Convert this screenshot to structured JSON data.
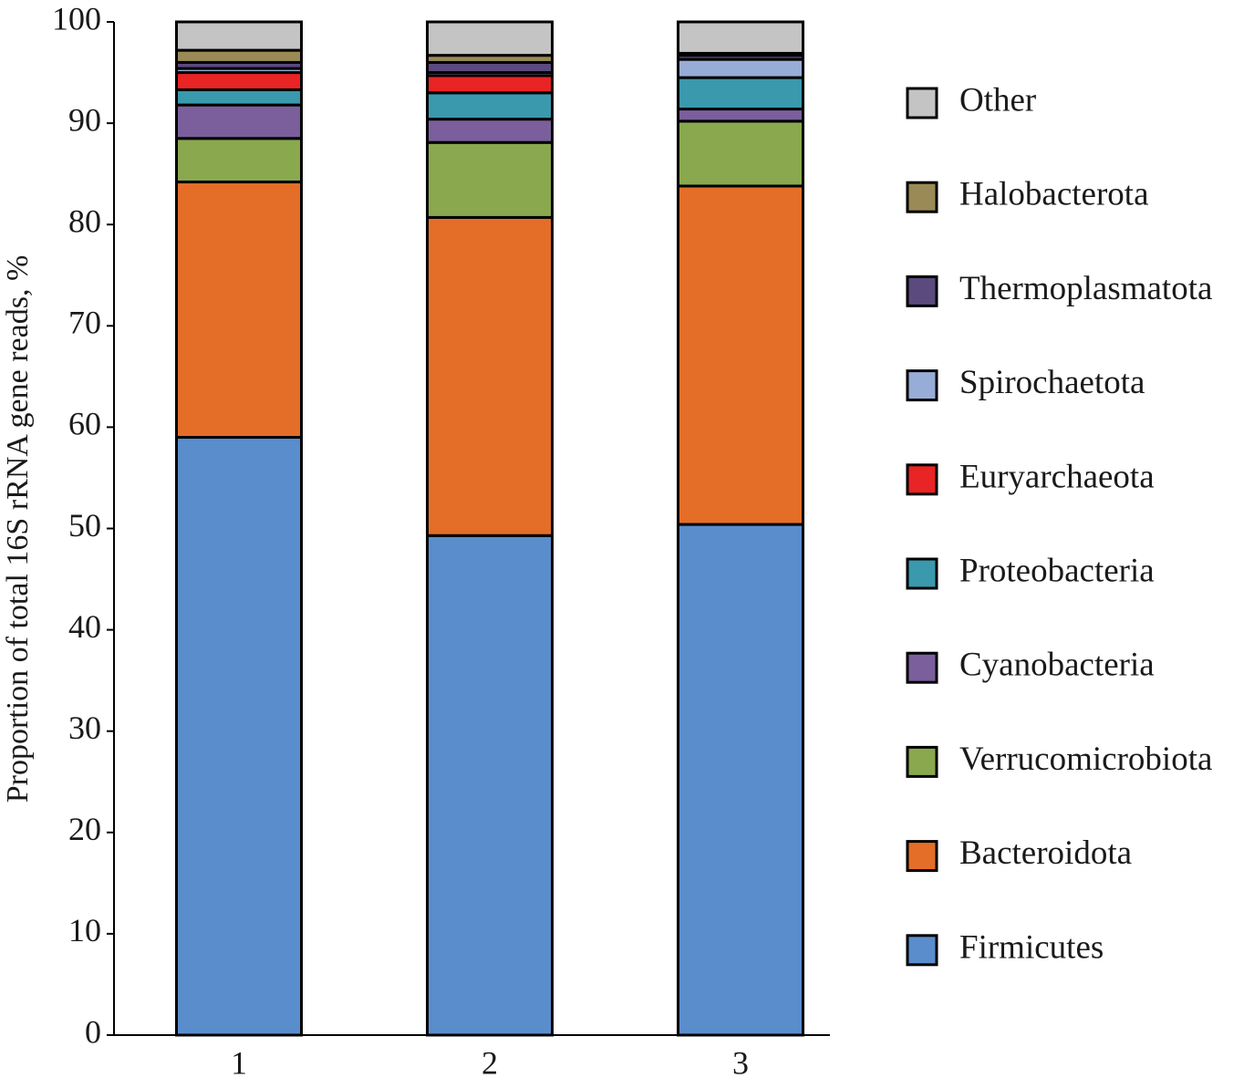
{
  "chart_data": {
    "type": "stacked-bar",
    "ylabel": "Proportion of total 16S rRNA gene reads, %",
    "categories": [
      "1",
      "2",
      "3"
    ],
    "ylim": [
      0,
      100
    ],
    "yticks": [
      0,
      10,
      20,
      30,
      40,
      50,
      60,
      70,
      80,
      90,
      100
    ],
    "series": [
      {
        "name": "Firmicutes",
        "color": "#5a8dcc",
        "values": [
          59.0,
          49.3,
          50.4
        ]
      },
      {
        "name": "Bacteroidota",
        "color": "#e46e27",
        "values": [
          25.2,
          31.4,
          33.4
        ]
      },
      {
        "name": "Verrucomicrobiota",
        "color": "#8aa84e",
        "values": [
          4.3,
          7.4,
          6.4
        ]
      },
      {
        "name": "Cyanobacteria",
        "color": "#7a5f9c",
        "values": [
          3.3,
          2.3,
          1.2
        ]
      },
      {
        "name": "Proteobacteria",
        "color": "#3a99ad",
        "values": [
          1.5,
          2.6,
          3.1
        ]
      },
      {
        "name": "Euryarchaeota",
        "color": "#e82424",
        "values": [
          1.7,
          1.7,
          0
        ]
      },
      {
        "name": "Spirochaetota",
        "color": "#98acd8",
        "values": [
          0.4,
          0.3,
          1.8
        ]
      },
      {
        "name": "Thermoplasmatota",
        "color": "#5a4a7e",
        "values": [
          0.6,
          1.0,
          0.4
        ]
      },
      {
        "name": "Halobacterota",
        "color": "#9a8a55",
        "values": [
          1.2,
          0.7,
          0.2
        ]
      },
      {
        "name": "Other",
        "color": "#c4c4c4",
        "values": [
          2.8,
          3.3,
          3.1
        ]
      }
    ]
  }
}
